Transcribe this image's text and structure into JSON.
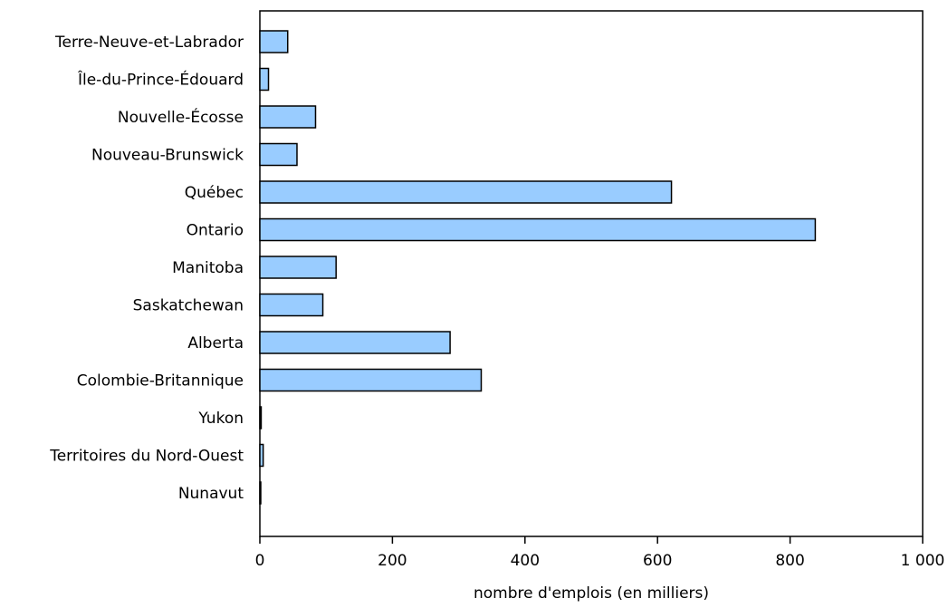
{
  "chart_data": {
    "type": "bar",
    "orientation": "horizontal",
    "categories": [
      "Terre-Neuve-et-Labrador",
      "Île-du-Prince-Édouard",
      "Nouvelle-Écosse",
      "Nouveau-Brunswick",
      "Québec",
      "Ontario",
      "Manitoba",
      "Saskatchewan",
      "Alberta",
      "Colombie-Britannique",
      "Yukon",
      "Territoires du Nord-Ouest",
      "Nunavut"
    ],
    "values": [
      42,
      13,
      84,
      56,
      621,
      838,
      115,
      95,
      287,
      334,
      2,
      5,
      1
    ],
    "xlabel": "nombre d'emplois (en milliers)",
    "ylabel": "",
    "xlim": [
      0,
      1000
    ],
    "xticks": [
      0,
      200,
      400,
      600,
      800,
      1000
    ],
    "xtick_labels": [
      "0",
      "200",
      "400",
      "600",
      "800",
      "1 000"
    ],
    "grid": false,
    "bar_color": "#99ccff",
    "bar_edge_color": "#000000"
  }
}
